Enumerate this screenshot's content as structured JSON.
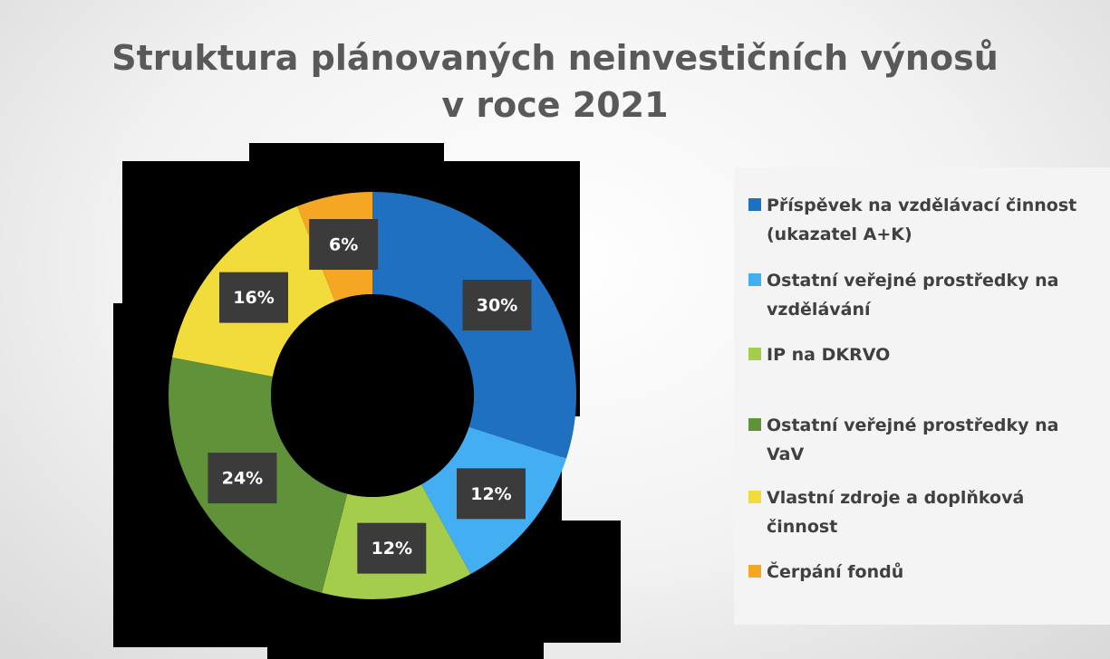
{
  "chart_data": {
    "type": "donut",
    "title": [
      "Struktura plánovaných neinvestičních výnosů",
      "v roce 2021"
    ],
    "categories": [
      "Příspěvek na vzdělávací činnost (ukazatel A+K)",
      "Ostatní veřejné prostředky na vzdělávání",
      "IP na DKRVO",
      "Ostatní veřejné prostředky na VaV",
      "Vlastní zdroje a doplňková činnost",
      "Čerpání fondů"
    ],
    "values": [
      30,
      12,
      12,
      24,
      16,
      6
    ],
    "value_labels": [
      "30%",
      "12%",
      "12%",
      "24%",
      "16%",
      "6%"
    ],
    "colors": [
      "#1f70c1",
      "#44aef2",
      "#a3cd4b",
      "#5f9239",
      "#f2dc3c",
      "#f5a623"
    ],
    "legend": "right"
  }
}
